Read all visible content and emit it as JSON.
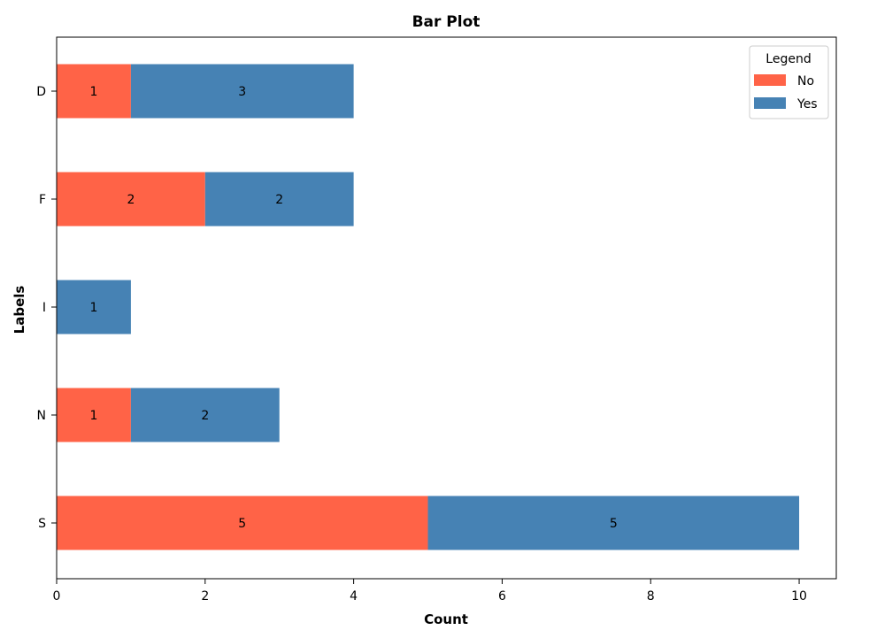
{
  "chart_data": {
    "type": "bar",
    "orientation": "horizontal",
    "stacked": true,
    "title": "Bar Plot",
    "xlabel": "Count",
    "ylabel": "Labels",
    "categories": [
      "D",
      "F",
      "I",
      "N",
      "S"
    ],
    "series": [
      {
        "name": "No",
        "color": "#ff6347",
        "values": [
          1,
          2,
          0,
          1,
          5
        ]
      },
      {
        "name": "Yes",
        "color": "#4682b4",
        "values": [
          3,
          2,
          1,
          2,
          5
        ]
      }
    ],
    "xlim": [
      0,
      10.5
    ],
    "xticks": [
      0,
      2,
      4,
      6,
      8,
      10
    ],
    "grid": false,
    "legend": {
      "title": "Legend",
      "placement": "top-right"
    }
  }
}
